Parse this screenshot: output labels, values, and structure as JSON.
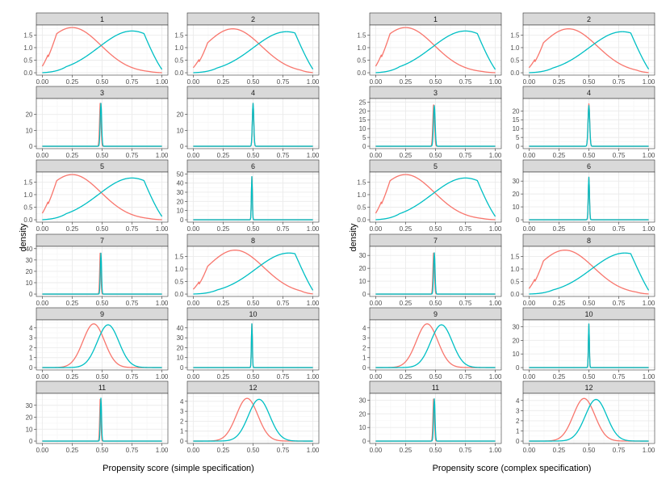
{
  "colors": {
    "treated": "#F8766D",
    "control": "#00BFC4",
    "strip": "#D9D9D9",
    "grid_major": "#EBEBEB",
    "grid_minor": "#F5F5F5",
    "axis_text": "#4D4D4D",
    "panel_border": "#333333"
  },
  "chart_data": [
    {
      "type": "line",
      "subtype": "faceted-density",
      "xlabel": "Propensity score (simple specification)",
      "ylabel": "density",
      "x_ticks": [
        "0.00",
        "0.25",
        "0.50",
        "0.75",
        "1.00"
      ],
      "xlim": [
        0,
        1
      ],
      "panels": [
        {
          "label": "1",
          "kind": "wide",
          "red": [
            0.25,
            1.8
          ],
          "blue": [
            0.75,
            1.75
          ],
          "ymax": 1.9,
          "y_ticks": [
            "0.0",
            "0.5",
            "1.0",
            "1.5"
          ],
          "y_vals": [
            0,
            0.5,
            1.0,
            1.5
          ]
        },
        {
          "label": "2",
          "kind": "wide",
          "red": [
            0.33,
            1.75
          ],
          "blue": [
            0.78,
            1.72
          ],
          "ymax": 1.9,
          "y_ticks": [
            "0.0",
            "0.5",
            "1.0",
            "1.5"
          ],
          "y_vals": [
            0,
            0.5,
            1.0,
            1.5
          ]
        },
        {
          "label": "3",
          "kind": "spike",
          "red": [
            0.485,
            28
          ],
          "blue": [
            0.49,
            27
          ],
          "sd": 0.006,
          "ymax": 30,
          "y_ticks": [
            "0",
            "10",
            "20"
          ],
          "y_vals": [
            0,
            10,
            20
          ]
        },
        {
          "label": "4",
          "kind": "spike",
          "red": [
            0.5,
            27
          ],
          "blue": [
            0.5,
            27
          ],
          "sd": 0.006,
          "ymax": 30,
          "y_ticks": [
            "0",
            "10",
            "20"
          ],
          "y_vals": [
            0,
            10,
            20
          ]
        },
        {
          "label": "5",
          "kind": "wide",
          "red": [
            0.25,
            1.8
          ],
          "blue": [
            0.75,
            1.75
          ],
          "ymax": 1.9,
          "y_ticks": [
            "0.0",
            "0.5",
            "1.0",
            "1.5"
          ],
          "y_vals": [
            0,
            0.5,
            1.0,
            1.5
          ]
        },
        {
          "label": "6",
          "kind": "spike",
          "red": [
            0.49,
            47
          ],
          "blue": [
            0.49,
            47
          ],
          "sd": 0.004,
          "ymax": 52,
          "y_ticks": [
            "0",
            "10",
            "20",
            "30",
            "40",
            "50"
          ],
          "y_vals": [
            0,
            10,
            20,
            30,
            40,
            50
          ]
        },
        {
          "label": "7",
          "kind": "spike",
          "red": [
            0.485,
            38
          ],
          "blue": [
            0.49,
            36
          ],
          "sd": 0.005,
          "ymax": 42,
          "y_ticks": [
            "0",
            "10",
            "20",
            "30",
            "40"
          ],
          "y_vals": [
            0,
            10,
            20,
            30,
            40
          ]
        },
        {
          "label": "8",
          "kind": "wide",
          "red": [
            0.35,
            1.75
          ],
          "blue": [
            0.8,
            1.72
          ],
          "ymax": 1.9,
          "y_ticks": [
            "0.0",
            "0.5",
            "1.0",
            "1.5"
          ],
          "y_vals": [
            0,
            0.5,
            1.0,
            1.5
          ]
        },
        {
          "label": "9",
          "kind": "normal",
          "red": [
            0.43,
            4.4
          ],
          "blue": [
            0.55,
            4.3
          ],
          "sd": 0.09,
          "ymax": 4.8,
          "y_ticks": [
            "0",
            "1",
            "2",
            "3",
            "4"
          ],
          "y_vals": [
            0,
            1,
            2,
            3,
            4
          ]
        },
        {
          "label": "10",
          "kind": "spike",
          "red": [
            0.49,
            44
          ],
          "blue": [
            0.49,
            44
          ],
          "sd": 0.004,
          "ymax": 48,
          "y_ticks": [
            "0",
            "10",
            "20",
            "30",
            "40"
          ],
          "y_vals": [
            0,
            10,
            20,
            30,
            40
          ]
        },
        {
          "label": "11",
          "kind": "spike",
          "red": [
            0.485,
            37
          ],
          "blue": [
            0.49,
            36
          ],
          "sd": 0.005,
          "ymax": 40,
          "y_ticks": [
            "0",
            "10",
            "20",
            "30"
          ],
          "y_vals": [
            0,
            10,
            20,
            30
          ]
        },
        {
          "label": "12",
          "kind": "normal",
          "red": [
            0.45,
            4.3
          ],
          "blue": [
            0.55,
            4.2
          ],
          "sd": 0.09,
          "ymax": 4.8,
          "y_ticks": [
            "0",
            "1",
            "2",
            "3",
            "4"
          ],
          "y_vals": [
            0,
            1,
            2,
            3,
            4
          ]
        }
      ]
    },
    {
      "type": "line",
      "subtype": "faceted-density",
      "xlabel": "Propensity score (complex specification)",
      "ylabel": "density",
      "x_ticks": [
        "0.00",
        "0.25",
        "0.50",
        "0.75",
        "1.00"
      ],
      "xlim": [
        0,
        1
      ],
      "panels": [
        {
          "label": "1",
          "kind": "wide",
          "red": [
            0.25,
            1.8
          ],
          "blue": [
            0.75,
            1.75
          ],
          "ymax": 1.9,
          "y_ticks": [
            "0.0",
            "0.5",
            "1.0",
            "1.5"
          ],
          "y_vals": [
            0,
            0.5,
            1.0,
            1.5
          ]
        },
        {
          "label": "2",
          "kind": "wide",
          "red": [
            0.33,
            1.75
          ],
          "blue": [
            0.78,
            1.72
          ],
          "ymax": 1.9,
          "y_ticks": [
            "0.0",
            "0.5",
            "1.0",
            "1.5"
          ],
          "y_vals": [
            0,
            0.5,
            1.0,
            1.5
          ]
        },
        {
          "label": "3",
          "kind": "spike",
          "red": [
            0.485,
            24
          ],
          "blue": [
            0.49,
            23
          ],
          "sd": 0.007,
          "ymax": 27,
          "y_ticks": [
            "0",
            "5",
            "10",
            "15",
            "20",
            "25"
          ],
          "y_vals": [
            0,
            5,
            10,
            15,
            20,
            25
          ]
        },
        {
          "label": "4",
          "kind": "spike",
          "red": [
            0.5,
            24
          ],
          "blue": [
            0.5,
            23
          ],
          "sd": 0.007,
          "ymax": 27,
          "y_ticks": [
            "0",
            "5",
            "10",
            "15",
            "20"
          ],
          "y_vals": [
            0,
            5,
            10,
            15,
            20
          ]
        },
        {
          "label": "5",
          "kind": "wide",
          "red": [
            0.25,
            1.8
          ],
          "blue": [
            0.75,
            1.75
          ],
          "ymax": 1.9,
          "y_ticks": [
            "0.0",
            "0.5",
            "1.0",
            "1.5"
          ],
          "y_vals": [
            0,
            0.5,
            1.0,
            1.5
          ]
        },
        {
          "label": "6",
          "kind": "spike",
          "red": [
            0.5,
            33
          ],
          "blue": [
            0.5,
            33
          ],
          "sd": 0.005,
          "ymax": 37,
          "y_ticks": [
            "0",
            "10",
            "20",
            "30"
          ],
          "y_vals": [
            0,
            10,
            20,
            30
          ]
        },
        {
          "label": "7",
          "kind": "spike",
          "red": [
            0.485,
            33
          ],
          "blue": [
            0.49,
            32
          ],
          "sd": 0.006,
          "ymax": 37,
          "y_ticks": [
            "0",
            "10",
            "20",
            "30"
          ],
          "y_vals": [
            0,
            10,
            20,
            30
          ]
        },
        {
          "label": "8",
          "kind": "wide",
          "red": [
            0.3,
            1.75
          ],
          "blue": [
            0.8,
            1.72
          ],
          "ymax": 1.9,
          "y_ticks": [
            "0.0",
            "0.5",
            "1.0",
            "1.5"
          ],
          "y_vals": [
            0,
            0.5,
            1.0,
            1.5
          ]
        },
        {
          "label": "9",
          "kind": "normal",
          "red": [
            0.43,
            4.4
          ],
          "blue": [
            0.55,
            4.3
          ],
          "sd": 0.09,
          "ymax": 4.8,
          "y_ticks": [
            "0",
            "1",
            "2",
            "3",
            "4"
          ],
          "y_vals": [
            0,
            1,
            2,
            3,
            4
          ]
        },
        {
          "label": "10",
          "kind": "spike",
          "red": [
            0.5,
            32
          ],
          "blue": [
            0.5,
            32
          ],
          "sd": 0.004,
          "ymax": 35,
          "y_ticks": [
            "0",
            "10",
            "20",
            "30"
          ],
          "y_vals": [
            0,
            10,
            20,
            30
          ]
        },
        {
          "label": "11",
          "kind": "spike",
          "red": [
            0.485,
            32
          ],
          "blue": [
            0.49,
            31
          ],
          "sd": 0.006,
          "ymax": 35,
          "y_ticks": [
            "0",
            "10",
            "20",
            "30"
          ],
          "y_vals": [
            0,
            10,
            20,
            30
          ]
        },
        {
          "label": "12",
          "kind": "normal",
          "red": [
            0.46,
            4.2
          ],
          "blue": [
            0.56,
            4.1
          ],
          "sd": 0.09,
          "ymax": 4.7,
          "y_ticks": [
            "0",
            "1",
            "2",
            "3",
            "4"
          ],
          "y_vals": [
            0,
            1,
            2,
            3,
            4
          ]
        }
      ]
    }
  ]
}
